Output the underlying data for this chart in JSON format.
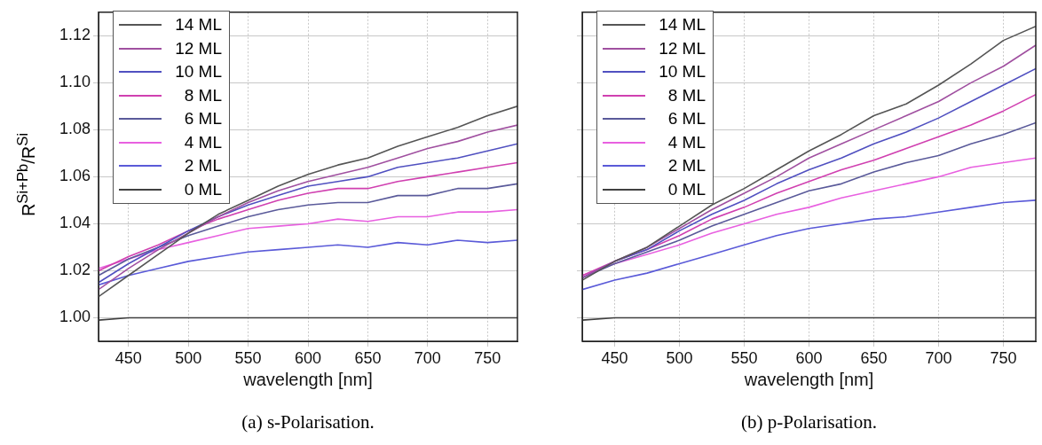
{
  "chart_data": [
    {
      "type": "line",
      "xlabel": "wavelength [nm]",
      "ylabel": "R$^{Si+Pb}$/R$^{Si}$",
      "annotations": [
        "(a) s-Polarisation."
      ],
      "x": [
        425,
        450,
        475,
        500,
        525,
        550,
        575,
        600,
        625,
        650,
        675,
        700,
        725,
        750,
        775
      ],
      "xlim": [
        425,
        775
      ],
      "xticks": [
        450,
        500,
        550,
        600,
        650,
        700,
        750
      ],
      "ylim": [
        0.99,
        1.13
      ],
      "yticks": [
        {
          "value": 1.0,
          "label": "1.00"
        },
        {
          "value": 1.02,
          "label": "1.02"
        },
        {
          "value": 1.04,
          "label": "1.04"
        },
        {
          "value": 1.06,
          "label": "1.06"
        },
        {
          "value": 1.08,
          "label": "1.08"
        },
        {
          "value": 1.1,
          "label": "1.10"
        },
        {
          "value": 1.12,
          "label": "1.12"
        }
      ],
      "grid": true,
      "legend": "top left",
      "marker": "none",
      "series": [
        {
          "name": "14 ML",
          "color": "#555555",
          "values": [
            1.009,
            1.018,
            1.027,
            1.036,
            1.044,
            1.05,
            1.056,
            1.061,
            1.065,
            1.068,
            1.073,
            1.077,
            1.081,
            1.086,
            1.09
          ]
        },
        {
          "name": "12 ML",
          "color": "#a050a0",
          "values": [
            1.012,
            1.021,
            1.029,
            1.036,
            1.043,
            1.049,
            1.054,
            1.058,
            1.061,
            1.064,
            1.068,
            1.072,
            1.075,
            1.079,
            1.082
          ]
        },
        {
          "name": "10 ML",
          "color": "#5050c0",
          "values": [
            1.015,
            1.023,
            1.03,
            1.037,
            1.043,
            1.048,
            1.052,
            1.056,
            1.058,
            1.06,
            1.064,
            1.066,
            1.068,
            1.071,
            1.074
          ]
        },
        {
          "name": "8 ML",
          "color": "#d040b0",
          "values": [
            1.02,
            1.026,
            1.031,
            1.037,
            1.042,
            1.046,
            1.05,
            1.053,
            1.055,
            1.055,
            1.058,
            1.06,
            1.062,
            1.064,
            1.066
          ]
        },
        {
          "name": "6 ML",
          "color": "#5a5a9a",
          "values": [
            1.018,
            1.025,
            1.03,
            1.035,
            1.039,
            1.043,
            1.046,
            1.048,
            1.049,
            1.049,
            1.052,
            1.052,
            1.055,
            1.055,
            1.057
          ]
        },
        {
          "name": "4 ML",
          "color": "#e860e0",
          "values": [
            1.021,
            1.025,
            1.029,
            1.032,
            1.035,
            1.038,
            1.039,
            1.04,
            1.042,
            1.041,
            1.043,
            1.043,
            1.045,
            1.045,
            1.046
          ]
        },
        {
          "name": "2 ML",
          "color": "#5a5ad8",
          "values": [
            1.014,
            1.018,
            1.021,
            1.024,
            1.026,
            1.028,
            1.029,
            1.03,
            1.031,
            1.03,
            1.032,
            1.031,
            1.033,
            1.032,
            1.033
          ]
        },
        {
          "name": "0 ML",
          "color": "#404040",
          "values": [
            0.999,
            1.0,
            1.0,
            1.0,
            1.0,
            1.0,
            1.0,
            1.0,
            1.0,
            1.0,
            1.0,
            1.0,
            1.0,
            1.0,
            1.0
          ]
        }
      ]
    },
    {
      "type": "line",
      "xlabel": "wavelength [nm]",
      "annotations": [
        "(b) p-Polarisation."
      ],
      "x": [
        425,
        450,
        475,
        500,
        525,
        550,
        575,
        600,
        625,
        650,
        675,
        700,
        725,
        750,
        775
      ],
      "xlim": [
        425,
        775
      ],
      "xticks": [
        450,
        500,
        550,
        600,
        650,
        700,
        750
      ],
      "ylim": [
        0.99,
        1.13
      ],
      "yticks": [
        {
          "value": 1.0,
          "label": null
        },
        {
          "value": 1.02,
          "label": null
        },
        {
          "value": 1.04,
          "label": null
        },
        {
          "value": 1.06,
          "label": null
        },
        {
          "value": 1.08,
          "label": null
        },
        {
          "value": 1.1,
          "label": null
        },
        {
          "value": 1.12,
          "label": null
        }
      ],
      "grid": true,
      "legend": "top left",
      "marker": "none",
      "tick_labels": "x",
      "series": [
        {
          "name": "14 ML",
          "color": "#555555",
          "values": [
            1.016,
            1.024,
            1.03,
            1.039,
            1.048,
            1.055,
            1.063,
            1.071,
            1.078,
            1.086,
            1.091,
            1.099,
            1.108,
            1.118,
            1.124
          ]
        },
        {
          "name": "12 ML",
          "color": "#a050a0",
          "values": [
            1.017,
            1.024,
            1.03,
            1.038,
            1.046,
            1.053,
            1.06,
            1.068,
            1.074,
            1.08,
            1.086,
            1.092,
            1.1,
            1.107,
            1.116
          ]
        },
        {
          "name": "10 ML",
          "color": "#5050c0",
          "values": [
            1.017,
            1.024,
            1.029,
            1.037,
            1.044,
            1.05,
            1.057,
            1.063,
            1.068,
            1.074,
            1.079,
            1.085,
            1.092,
            1.099,
            1.106
          ]
        },
        {
          "name": "8 ML",
          "color": "#d040b0",
          "values": [
            1.018,
            1.024,
            1.029,
            1.035,
            1.042,
            1.047,
            1.053,
            1.058,
            1.063,
            1.067,
            1.072,
            1.077,
            1.082,
            1.088,
            1.095
          ]
        },
        {
          "name": "6 ML",
          "color": "#5a5a9a",
          "values": [
            1.017,
            1.023,
            1.028,
            1.033,
            1.039,
            1.044,
            1.049,
            1.054,
            1.057,
            1.062,
            1.066,
            1.069,
            1.074,
            1.078,
            1.083
          ]
        },
        {
          "name": "4 ML",
          "color": "#e860e0",
          "values": [
            1.018,
            1.023,
            1.027,
            1.031,
            1.036,
            1.04,
            1.044,
            1.047,
            1.051,
            1.054,
            1.057,
            1.06,
            1.064,
            1.066,
            1.068
          ]
        },
        {
          "name": "2 ML",
          "color": "#5a5ad8",
          "values": [
            1.012,
            1.016,
            1.019,
            1.023,
            1.027,
            1.031,
            1.035,
            1.038,
            1.04,
            1.042,
            1.043,
            1.045,
            1.047,
            1.049,
            1.05
          ]
        },
        {
          "name": "0 ML",
          "color": "#404040",
          "values": [
            0.999,
            1.0,
            1.0,
            1.0,
            1.0,
            1.0,
            1.0,
            1.0,
            1.0,
            1.0,
            1.0,
            1.0,
            1.0,
            1.0,
            1.0
          ]
        }
      ]
    }
  ]
}
